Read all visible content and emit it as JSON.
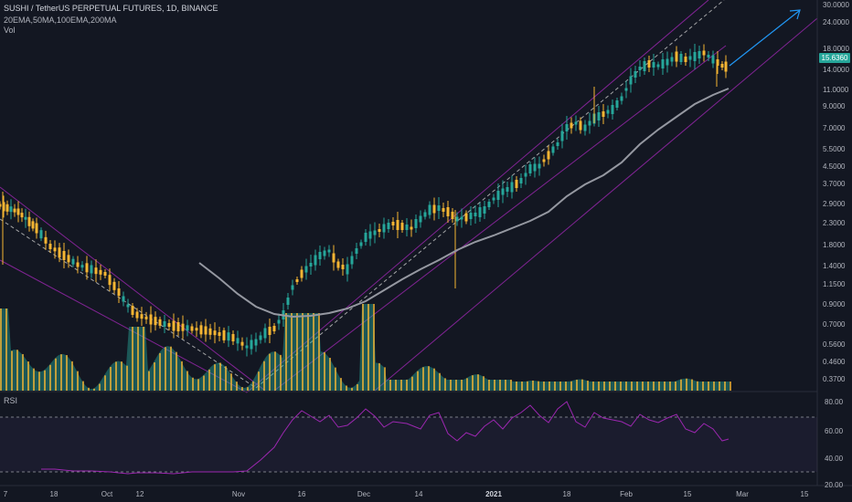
{
  "header": {
    "symbol_line": "SUSHI / TetherUS PERPETUAL FUTURES, 1D, BINANCE",
    "indicators_line": "20EMA,50MA,100EMA,200MA",
    "volume_label": "Vol"
  },
  "rsi_pane": {
    "title": "RSI"
  },
  "price_axis": {
    "ticks": [
      "30.0000",
      "24.0000",
      "18.0000",
      "14.0000",
      "11.0000",
      "9.0000",
      "7.0000",
      "5.5000",
      "4.5000",
      "3.7000",
      "2.9000",
      "2.3000",
      "1.8000",
      "1.4000",
      "1.1500",
      "0.9000",
      "0.7000",
      "0.5600",
      "0.4600",
      "0.3700"
    ],
    "current_price": "15.6360"
  },
  "rsi_axis": {
    "ticks": [
      "80.00",
      "60.00",
      "40.00",
      "20.00"
    ]
  },
  "time_axis": {
    "ticks": [
      {
        "label": "7",
        "major": false
      },
      {
        "label": "18",
        "major": false
      },
      {
        "label": "Oct",
        "major": false
      },
      {
        "label": "12",
        "major": false
      },
      {
        "label": "Nov",
        "major": false
      },
      {
        "label": "16",
        "major": false
      },
      {
        "label": "Dec",
        "major": false
      },
      {
        "label": "14",
        "major": false
      },
      {
        "label": "2021",
        "major": true
      },
      {
        "label": "18",
        "major": false
      },
      {
        "label": "Feb",
        "major": false
      },
      {
        "label": "15",
        "major": false
      },
      {
        "label": "Mar",
        "major": false
      },
      {
        "label": "15",
        "major": false
      }
    ]
  },
  "colors": {
    "background": "#131722",
    "bull_candle": "#26a69a",
    "bear_candle": "#f5b533",
    "ma_line": "#9598a1",
    "channel": "#9c27b0",
    "arrow": "#2196f3",
    "rsi_line": "#9c27b0"
  }
}
